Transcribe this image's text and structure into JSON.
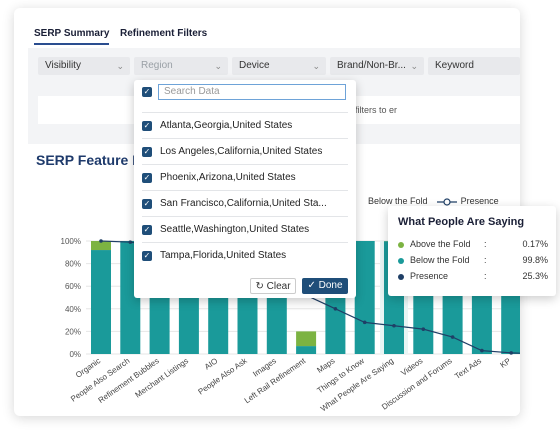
{
  "tabs": [
    {
      "label": "SERP Summary"
    },
    {
      "label": "Refinement Filters"
    }
  ],
  "filters": [
    {
      "label": "Visibility"
    },
    {
      "label": "Region"
    },
    {
      "label": "Device"
    },
    {
      "label": "Brand/Non-Br..."
    },
    {
      "label": "Keyword"
    }
  ],
  "info": {
    "text": "Make changes to filters to er"
  },
  "section": {
    "title": "SERP Feature P"
  },
  "legend": {
    "below": "Below the Fold",
    "presence": "Presence"
  },
  "colors": {
    "above": "#7cb342",
    "below": "#1a9a9a",
    "presence": "#1f3f66",
    "navy": "#1f4e79"
  },
  "dropdown": {
    "search_placeholder": "Search Data",
    "options": [
      "Atlanta,Georgia,United States",
      "Los Angeles,California,United States",
      "Phoenix,Arizona,United States",
      "San Francisco,California,United Sta...",
      "Seattle,Washington,United States",
      "Tampa,Florida,United States"
    ],
    "clear_label": "Clear",
    "done_label": "Done"
  },
  "tooltip": {
    "title": "What People Are Saying",
    "rows": [
      {
        "name": "Above the Fold",
        "value": "0.17%"
      },
      {
        "name": "Below the Fold",
        "value": "99.8%"
      },
      {
        "name": "Presence",
        "value": "25.3%"
      }
    ]
  },
  "chart_data": {
    "type": "bar",
    "categories": [
      "Organic",
      "People Also Search",
      "Refinement Bubbles",
      "Merchant Listings",
      "AIO",
      "People Also Ask",
      "Images",
      "Left Rail Refinement",
      "Maps",
      "Things to Know",
      "What People Are Saying",
      "Videos",
      "Discussion and Forums",
      "Text Ads",
      "KP",
      "Shor"
    ],
    "series": [
      {
        "name": "Above the Fold",
        "values": [
          8,
          0,
          0,
          0,
          0,
          0,
          0,
          13,
          0,
          0,
          0.17,
          0,
          0,
          0,
          0,
          0
        ]
      },
      {
        "name": "Below the Fold",
        "values": [
          92,
          100,
          100,
          100,
          100,
          100,
          100,
          7,
          100,
          100,
          99.8,
          100,
          100,
          100,
          100,
          100
        ]
      },
      {
        "name": "Presence",
        "values": [
          100,
          99,
          96,
          82,
          77,
          62,
          57,
          52,
          40,
          28,
          25,
          22,
          15,
          3,
          1,
          0
        ]
      }
    ],
    "yticks": [
      "0%",
      "20%",
      "40%",
      "60%",
      "80%",
      "100%"
    ],
    "ylim": [
      0,
      100
    ]
  }
}
